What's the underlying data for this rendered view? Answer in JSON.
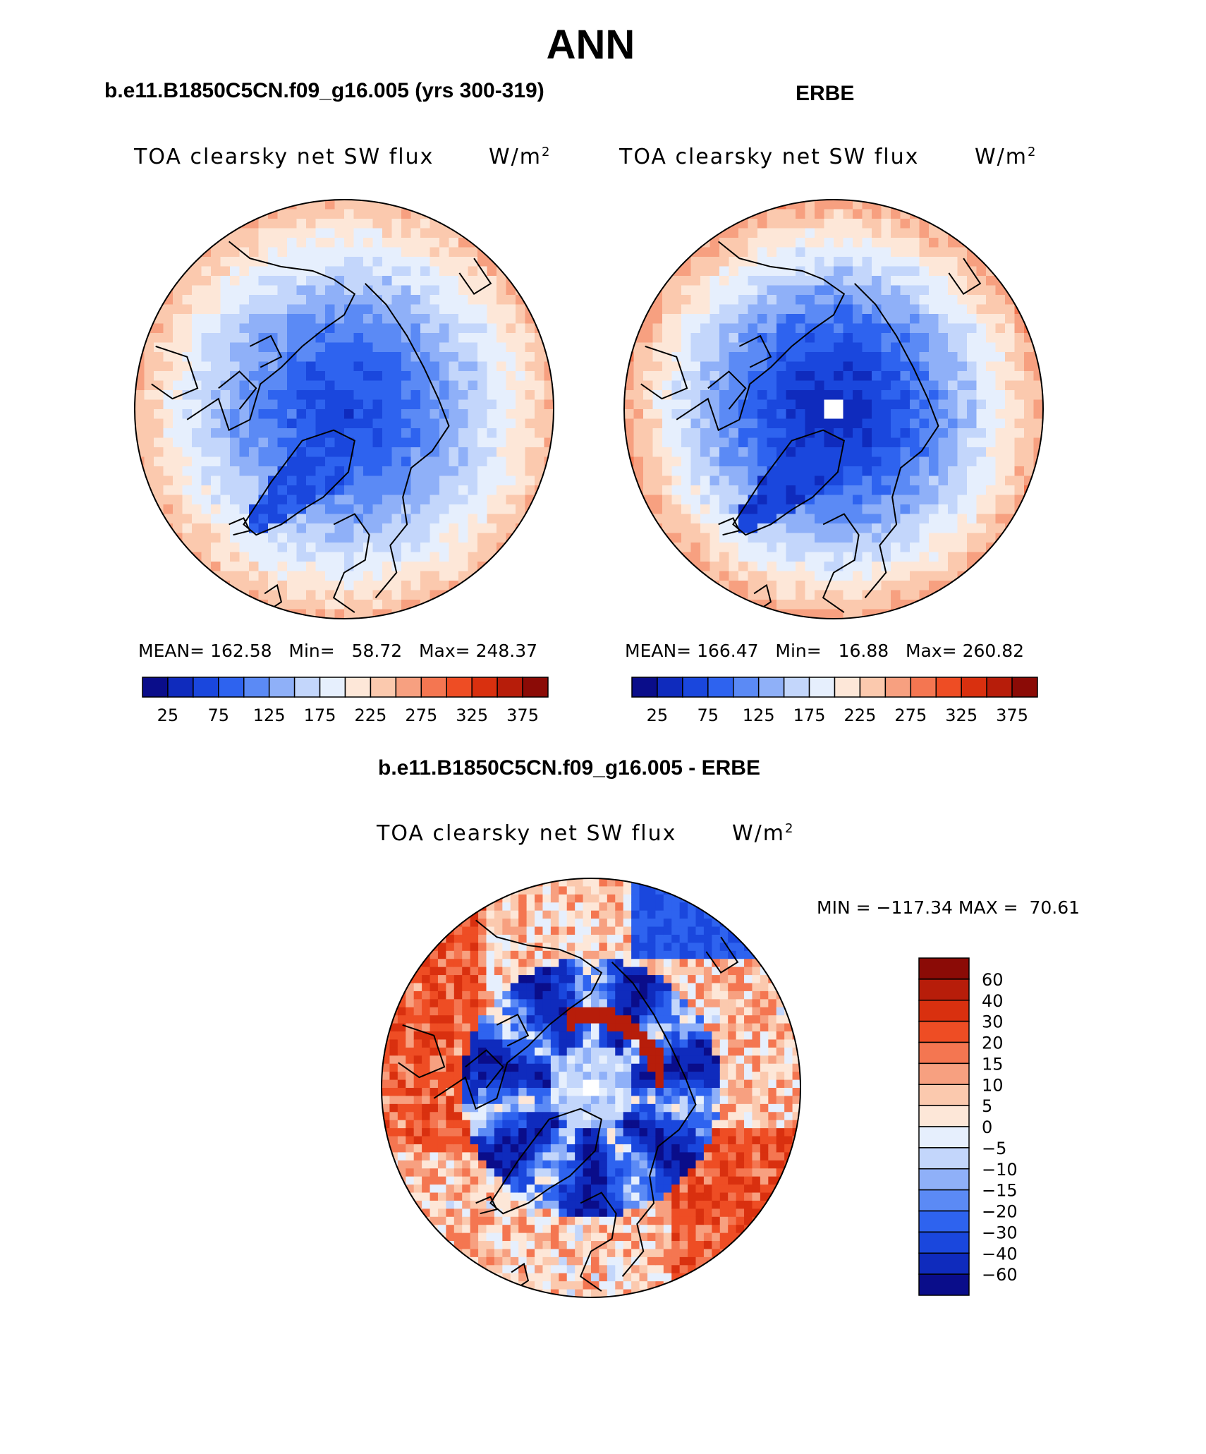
{
  "figure": {
    "title": "ANN",
    "left_panel_title": "b.e11.B1850C5CN.f09_g16.005 (yrs 300-319)",
    "right_panel_title": "ERBE",
    "diff_panel_title": "b.e11.B1850C5CN.f09_g16.005 - ERBE"
  },
  "colors": {
    "abs_palette": [
      "#0a0d8a",
      "#0f2bbd",
      "#1a47dd",
      "#2e63ef",
      "#5b8af5",
      "#8fb0f8",
      "#c3d6fb",
      "#e6effd",
      "#fde7d8",
      "#fbc9ae",
      "#f7a080",
      "#f47651",
      "#ee4d24",
      "#d9300f",
      "#b71d0a",
      "#8b0b06"
    ],
    "diff_palette": [
      "#0a0d8a",
      "#0f2bbd",
      "#1a47dd",
      "#2e63ef",
      "#5b8af5",
      "#8fb0f8",
      "#c3d6fb",
      "#e6effd",
      "#fde7d8",
      "#fbc9ae",
      "#f7a080",
      "#f47651",
      "#ee4d24",
      "#d9300f",
      "#b71d0a",
      "#8b0b06"
    ]
  },
  "chart_data": [
    {
      "type": "heatmap",
      "projection": "north polar stereographic",
      "title": "TOA clearsky net SW flux",
      "units_base": "W/m",
      "units_exp": "2",
      "stats": {
        "mean_label": "MEAN=",
        "mean": "162.58",
        "min_label": "Min=",
        "min": "58.72",
        "max_label": "Max=",
        "max": "248.37"
      },
      "colorbar_ticks": [
        "25",
        "75",
        "125",
        "175",
        "225",
        "275",
        "325",
        "375"
      ],
      "colorbar_levels": [
        0,
        25,
        50,
        75,
        100,
        125,
        150,
        175,
        200,
        225,
        250,
        275,
        300,
        325,
        350,
        375,
        400
      ],
      "field_center": 60,
      "field_edge": 248,
      "greenland": 62
    },
    {
      "type": "heatmap",
      "projection": "north polar stereographic",
      "title": "TOA clearsky net SW flux",
      "units_base": "W/m",
      "units_exp": "2",
      "stats": {
        "mean_label": "MEAN=",
        "mean": "166.47",
        "min_label": "Min=",
        "min": "16.88",
        "max_label": "Max=",
        "max": "260.82"
      },
      "colorbar_ticks": [
        "25",
        "75",
        "125",
        "175",
        "225",
        "275",
        "325",
        "375"
      ],
      "colorbar_levels": [
        0,
        25,
        50,
        75,
        100,
        125,
        150,
        175,
        200,
        225,
        250,
        275,
        300,
        325,
        350,
        375,
        400
      ],
      "field_center": 30,
      "field_edge": 260,
      "greenland": 45
    },
    {
      "type": "heatmap",
      "projection": "north polar stereographic",
      "title": "TOA clearsky net SW flux",
      "units_base": "W/m",
      "units_exp": "2",
      "stats": {
        "min_label": "MIN =",
        "min": "−117.34",
        "max_label": "MAX =",
        "max": "70.61"
      },
      "colorbar_ticks": [
        "60",
        "40",
        "30",
        "20",
        "15",
        "10",
        "5",
        "0",
        "−5",
        "−10",
        "−15",
        "−20",
        "−30",
        "−40",
        "−60"
      ]
    }
  ]
}
